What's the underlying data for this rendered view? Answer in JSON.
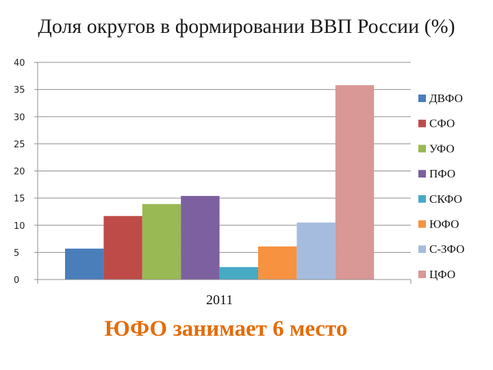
{
  "title": "Доля округов в формировании ВВП России (%)",
  "caption": "ЮФО занимает 6 место",
  "chart_data": {
    "type": "bar",
    "title": "Доля округов в формировании ВВП России (%)",
    "categories": [
      "2011"
    ],
    "ylim": [
      0,
      40
    ],
    "yticks": [
      0,
      5,
      10,
      15,
      20,
      25,
      30,
      35,
      40
    ],
    "grid": true,
    "legend_position": "right",
    "series": [
      {
        "name": "ДВФО",
        "values": [
          5.7
        ],
        "color": "#4a7ebb"
      },
      {
        "name": "СФО",
        "values": [
          11.7
        ],
        "color": "#be4b48"
      },
      {
        "name": "УФО",
        "values": [
          13.9
        ],
        "color": "#98b954"
      },
      {
        "name": "ПФО",
        "values": [
          15.4
        ],
        "color": "#7d60a0"
      },
      {
        "name": "СКФО",
        "values": [
          2.3
        ],
        "color": "#46aac5"
      },
      {
        "name": "ЮФО",
        "values": [
          6.1
        ],
        "color": "#f69240"
      },
      {
        "name": "С-ЗФО",
        "values": [
          10.5
        ],
        "color": "#a5bcdf"
      },
      {
        "name": "ЦФО",
        "values": [
          35.8
        ],
        "color": "#d99795"
      }
    ]
  }
}
